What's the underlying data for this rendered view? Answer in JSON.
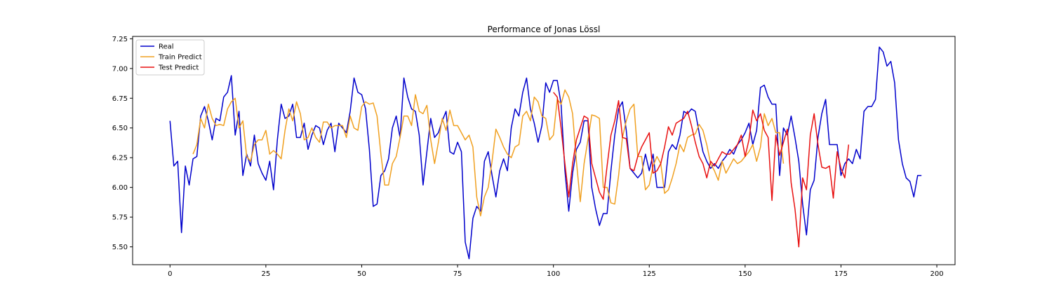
{
  "chart_data": {
    "type": "line",
    "title": "Performance of Jonas Lössl",
    "xlabel": "",
    "ylabel": "",
    "xlim": [
      -9.75,
      204.75
    ],
    "ylim": [
      5.35,
      7.27
    ],
    "xticks": [
      0,
      25,
      50,
      75,
      100,
      125,
      150,
      175,
      200
    ],
    "yticks": [
      5.5,
      5.75,
      6.0,
      6.25,
      6.5,
      6.75,
      7.0,
      7.25
    ],
    "xtick_labels": [
      "0",
      "25",
      "50",
      "75",
      "100",
      "125",
      "150",
      "175",
      "200"
    ],
    "ytick_labels": [
      "5.50",
      "5.75",
      "6.00",
      "6.25",
      "6.50",
      "6.75",
      "7.00",
      "7.25"
    ],
    "grid": false,
    "legend_position": "top-left",
    "series": [
      {
        "name": "Real",
        "color": "#0000cc",
        "x_start": 0,
        "values": [
          6.56,
          6.18,
          6.22,
          5.62,
          6.18,
          6.02,
          6.24,
          6.26,
          6.6,
          6.68,
          6.56,
          6.4,
          6.58,
          6.56,
          6.76,
          6.8,
          6.94,
          6.44,
          6.64,
          6.1,
          6.28,
          6.18,
          6.44,
          6.2,
          6.12,
          6.06,
          6.22,
          5.98,
          6.4,
          6.7,
          6.58,
          6.6,
          6.7,
          6.42,
          6.42,
          6.54,
          6.32,
          6.44,
          6.52,
          6.5,
          6.36,
          6.48,
          6.54,
          6.3,
          6.54,
          6.5,
          6.46,
          6.64,
          6.92,
          6.8,
          6.78,
          6.66,
          6.32,
          5.84,
          5.86,
          6.1,
          6.14,
          6.24,
          6.5,
          6.6,
          6.42,
          6.92,
          6.76,
          6.66,
          6.64,
          6.44,
          6.02,
          6.3,
          6.58,
          6.42,
          6.46,
          6.56,
          6.64,
          6.3,
          6.28,
          6.38,
          6.3,
          5.54,
          5.4,
          5.74,
          5.84,
          5.8,
          6.22,
          6.3,
          6.1,
          5.92,
          6.14,
          6.24,
          6.14,
          6.5,
          6.66,
          6.6,
          6.8,
          6.92,
          6.66,
          6.54,
          6.38,
          6.52,
          6.88,
          6.8,
          6.9,
          6.9,
          6.7,
          6.14,
          5.8,
          6.12,
          6.32,
          6.38,
          6.56,
          6.56,
          6.0,
          5.82,
          5.68,
          5.78,
          5.78,
          6.14,
          6.44,
          6.66,
          6.72,
          6.48,
          6.16,
          6.12,
          6.08,
          6.12,
          6.28,
          6.14,
          6.28,
          6.0,
          6.0,
          6.0,
          6.3,
          6.36,
          6.32,
          6.44,
          6.64,
          6.62,
          6.66,
          6.64,
          6.46,
          6.3,
          6.22,
          6.16,
          6.2,
          6.16,
          6.22,
          6.26,
          6.32,
          6.28,
          6.36,
          6.4,
          6.46,
          6.54,
          6.36,
          6.48,
          6.84,
          6.86,
          6.76,
          6.7,
          6.7,
          6.1,
          6.5,
          6.44,
          6.6,
          6.42,
          6.22,
          5.86,
          5.6,
          5.98,
          6.06,
          6.42,
          6.62,
          6.74,
          6.36,
          6.36,
          6.36,
          6.1,
          6.2,
          6.24,
          6.2,
          6.32,
          6.24,
          6.64,
          6.68,
          6.68,
          6.74,
          7.18,
          7.14,
          7.02,
          7.06,
          6.88,
          6.4,
          6.2,
          6.08,
          6.05,
          5.92,
          6.1,
          6.1
        ]
      },
      {
        "name": "Train Predict",
        "color": "#f0a020",
        "x_start": 6,
        "values": [
          6.28,
          6.36,
          6.58,
          6.5,
          6.7,
          6.58,
          6.52,
          6.53,
          6.52,
          6.66,
          6.72,
          6.75,
          6.5,
          6.56,
          6.26,
          6.22,
          6.36,
          6.4,
          6.4,
          6.48,
          6.28,
          6.31,
          6.28,
          6.24,
          6.48,
          6.66,
          6.56,
          6.72,
          6.62,
          6.4,
          6.42,
          6.5,
          6.42,
          6.38,
          6.55,
          6.55,
          6.5,
          6.52,
          6.52,
          6.52,
          6.42,
          6.6,
          6.5,
          6.48,
          6.68,
          6.72,
          6.7,
          6.71,
          6.6,
          6.28,
          6.02,
          6.02,
          6.2,
          6.26,
          6.42,
          6.6,
          6.6,
          6.52,
          6.78,
          6.64,
          6.62,
          6.69,
          6.4,
          6.2,
          6.38,
          6.58,
          6.48,
          6.65,
          6.52,
          6.52,
          6.46,
          6.4,
          6.44,
          6.34,
          5.92,
          5.76,
          5.92,
          6.0,
          6.22,
          6.49,
          6.42,
          6.34,
          6.28,
          6.25,
          6.34,
          6.36,
          6.6,
          6.64,
          6.56,
          6.76,
          6.72,
          6.6,
          6.58,
          6.4,
          6.44,
          6.74,
          6.7,
          6.82,
          6.76,
          6.62,
          6.22,
          5.88,
          6.2,
          6.4,
          6.61,
          6.6,
          6.58,
          6.0,
          6.0,
          5.87,
          5.86,
          6.1,
          6.42,
          6.56,
          6.66,
          6.7,
          6.26,
          6.26,
          5.98,
          6.02,
          6.18,
          6.26,
          6.2,
          5.95,
          5.98,
          6.08,
          6.2,
          6.36,
          6.3,
          6.42,
          6.44,
          6.45,
          6.53,
          6.48,
          6.36,
          6.2,
          6.14,
          6.06,
          6.22,
          6.12,
          6.18,
          6.24,
          6.2,
          6.22,
          6.26,
          6.3,
          6.36,
          6.22,
          6.34,
          6.62,
          6.52,
          6.58,
          6.46,
          6.46,
          6.2
        ]
      },
      {
        "name": "Test Predict",
        "color": "#e81010",
        "x_start": 100,
        "values": [
          6.8,
          6.76,
          6.5,
          6.2,
          5.92,
          6.2,
          6.4,
          6.5,
          6.6,
          6.58,
          6.2,
          6.08,
          5.96,
          5.9,
          6.18,
          6.44,
          6.56,
          6.73,
          6.42,
          6.41,
          6.16,
          6.14,
          6.26,
          6.34,
          6.4,
          6.46,
          6.12,
          6.14,
          6.2,
          6.34,
          6.51,
          6.44,
          6.54,
          6.56,
          6.58,
          6.64,
          6.52,
          6.38,
          6.26,
          6.2,
          6.08,
          6.22,
          6.18,
          6.24,
          6.3,
          6.28,
          6.28,
          6.32,
          6.36,
          6.44,
          6.26,
          6.4,
          6.65,
          6.56,
          6.62,
          6.48,
          6.42,
          5.89,
          6.44,
          6.27,
          6.38,
          6.49,
          6.04,
          5.82,
          5.5,
          6.08,
          5.98,
          6.44,
          6.62,
          6.36,
          6.17,
          6.16,
          6.18,
          5.91,
          6.3,
          6.16,
          6.08,
          6.36
        ]
      }
    ]
  }
}
